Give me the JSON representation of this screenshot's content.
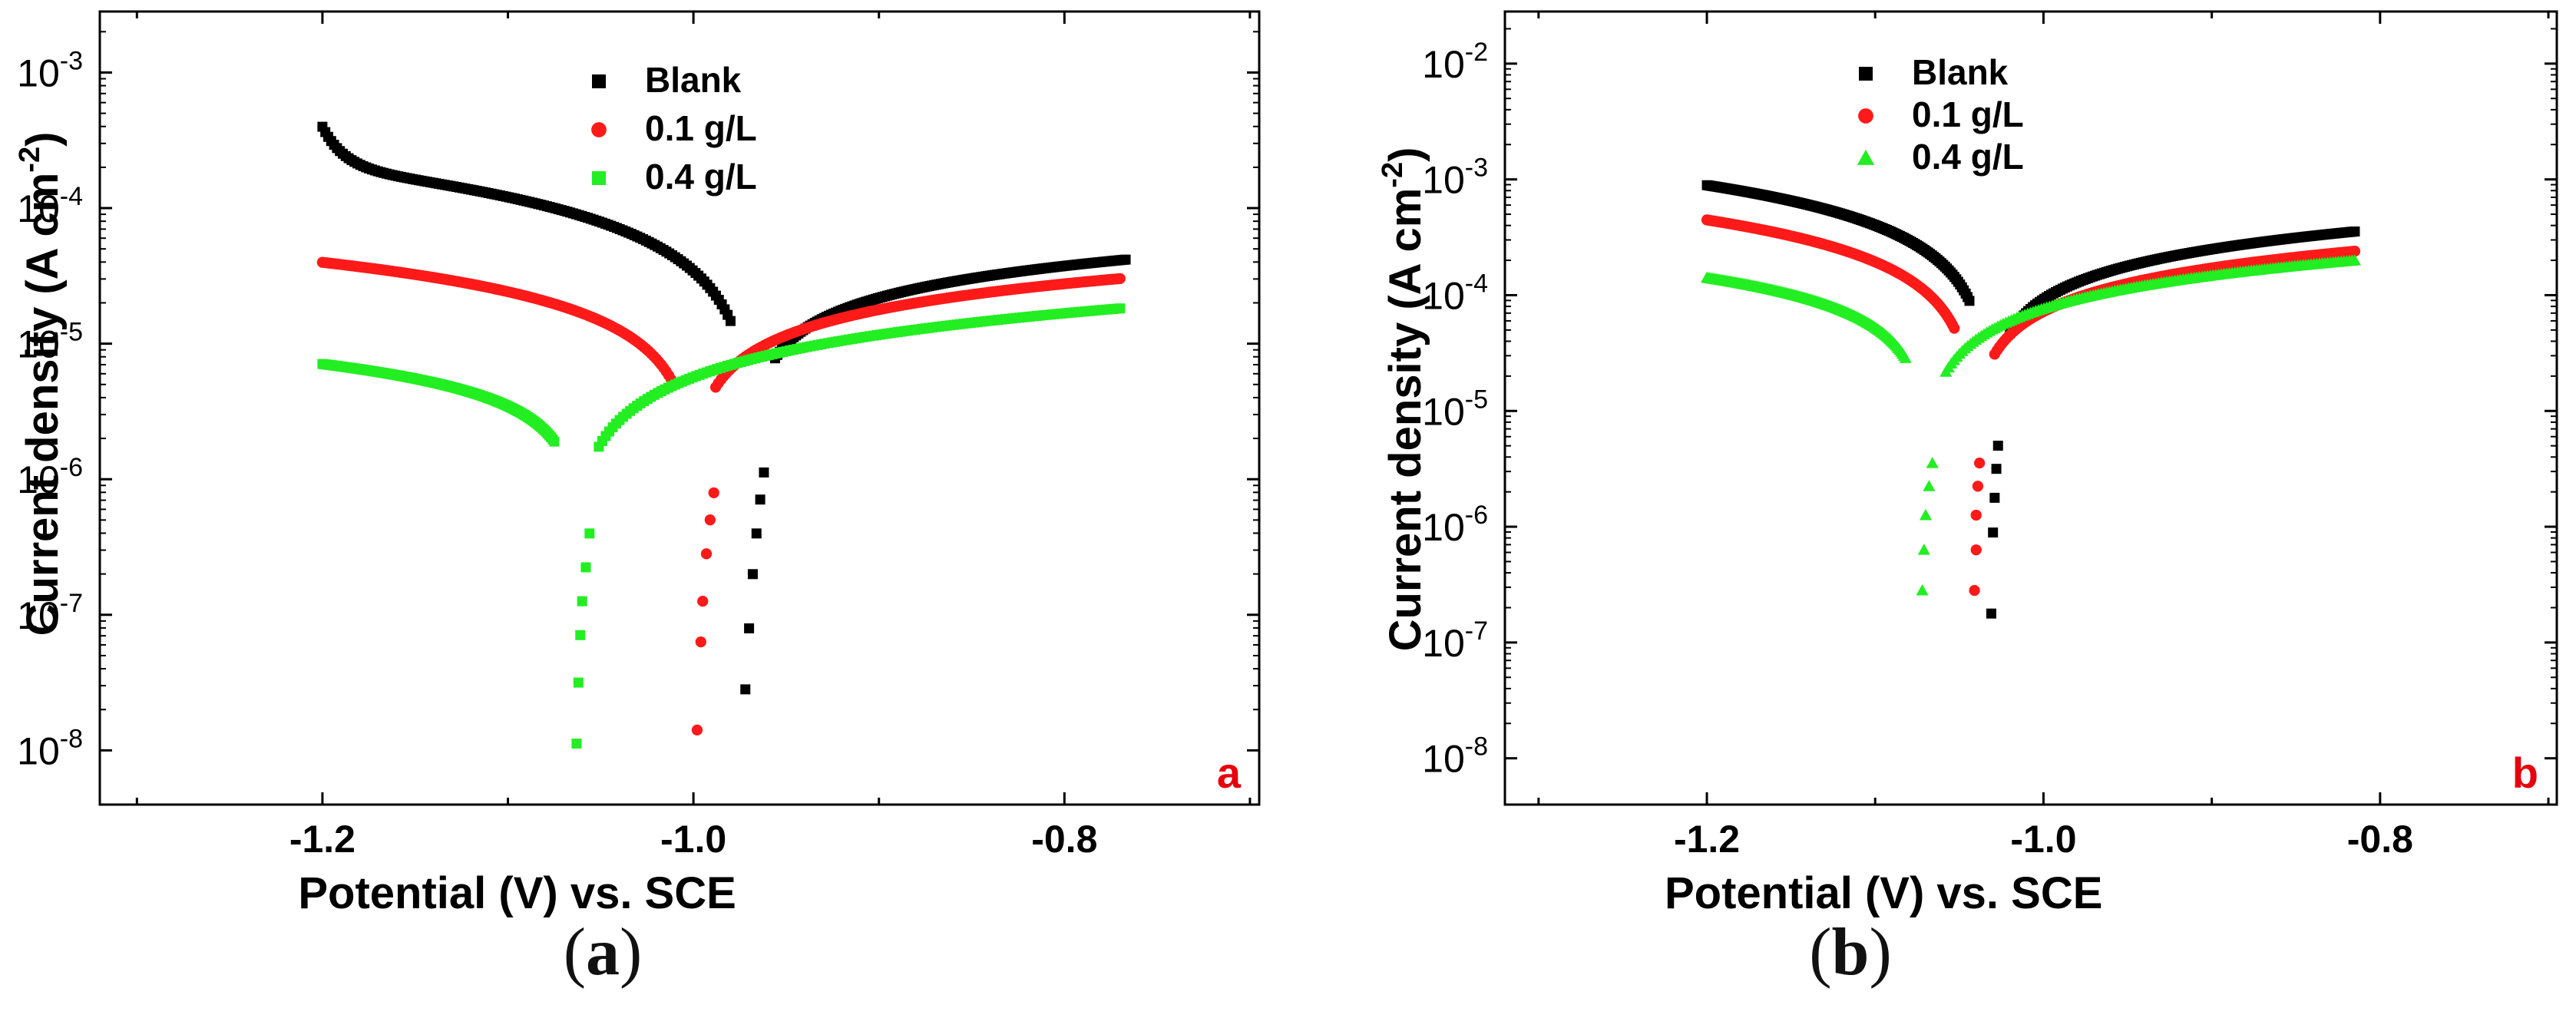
{
  "chart_data": [
    {
      "id": "a",
      "type": "scatter",
      "yscale": "log",
      "xlabel": "Potential (V) vs. SCE",
      "ylabel_main": "Current density (A cm",
      "ylabel_sup": "-2",
      "ylabel_close": ")",
      "xlim": [
        -1.32,
        -0.695
      ],
      "ylim_exp": [
        -8.4,
        -2.55
      ],
      "xticks": [
        -1.2,
        -1.0,
        -0.8
      ],
      "xtick_labels": [
        "-1.2",
        "-1.0",
        "-0.8"
      ],
      "yticks_exp": [
        -8,
        -7,
        -6,
        -5,
        -4,
        -3
      ],
      "ytick_sup": [
        "-8",
        "-7",
        "-6",
        "-5",
        "-4",
        "-3"
      ],
      "ytick_base": "10",
      "panel_label": "a",
      "panel_label_color": "#e8000b",
      "legend": [
        {
          "name": "Blank",
          "color": "#000000",
          "marker": "square"
        },
        {
          "name": "0.1 g/L",
          "color": "#ff1a1a",
          "marker": "circle"
        },
        {
          "name": "0.4 g/L",
          "color": "#22ee22",
          "marker": "square"
        }
      ],
      "series": [
        {
          "name": "Blank",
          "color": "#000000",
          "marker": "square",
          "Ecorr": -0.968,
          "y_start": -3.7,
          "cat_a": 0.6,
          "cat_b": 0.3,
          "cat_k": 32,
          "an_end": -0.767,
          "y_end": -4.38,
          "an_a": 0.75,
          "an_b": 0.24,
          "an_k": 40,
          "spike": [
            [
              -0.972,
              -7.55
            ],
            [
              -0.97,
              -7.1
            ],
            [
              -0.968,
              -6.7
            ],
            [
              -0.966,
              -6.4
            ],
            [
              -0.964,
              -6.15
            ],
            [
              -0.962,
              -5.95
            ]
          ]
        },
        {
          "name": "0.1 g/L",
          "color": "#ff1a1a",
          "marker": "circle",
          "Ecorr": -1.0,
          "y_start": -4.4,
          "cat_a": 1.15,
          "cat_b": 0.0,
          "cat_k": 22,
          "an_end": -0.77,
          "y_end": -4.52,
          "an_a": 1.0,
          "an_b": 0.0,
          "an_k": 30,
          "spike": [
            [
              -0.998,
              -7.85
            ],
            [
              -0.996,
              -7.2
            ],
            [
              -0.995,
              -6.9
            ],
            [
              -0.993,
              -6.55
            ],
            [
              -0.991,
              -6.3
            ],
            [
              -0.989,
              -6.1
            ]
          ]
        },
        {
          "name": "0.4 g/L",
          "color": "#22ee22",
          "marker": "square",
          "Ecorr": -1.063,
          "y_start": -5.15,
          "cat_a": 0.9,
          "cat_b": 0.0,
          "cat_k": 18,
          "an_end": -0.77,
          "y_end": -4.74,
          "an_a": 1.55,
          "an_b": 0.0,
          "an_k": 14,
          "spike": [
            [
              -1.063,
              -7.95
            ],
            [
              -1.062,
              -7.5
            ],
            [
              -1.061,
              -7.15
            ],
            [
              -1.06,
              -6.9
            ],
            [
              -1.058,
              -6.65
            ],
            [
              -1.056,
              -6.4
            ]
          ]
        }
      ]
    },
    {
      "id": "b",
      "type": "scatter",
      "yscale": "log",
      "xlabel": "Potential (V) vs. SCE",
      "ylabel_main": "Current density (A cm",
      "ylabel_sup": "-2",
      "ylabel_close": ")",
      "xlim": [
        -1.32,
        -0.695
      ],
      "ylim_exp": [
        -8.4,
        -1.55
      ],
      "xticks": [
        -1.2,
        -1.0,
        -0.8
      ],
      "xtick_labels": [
        "-1.2",
        "-1.0",
        "-0.8"
      ],
      "yticks_exp": [
        -8,
        -7,
        -6,
        -5,
        -4,
        -3,
        -2
      ],
      "ytick_sup": [
        "-8",
        "-7",
        "-6",
        "-5",
        "-4",
        "-3",
        "-2"
      ],
      "ytick_base": "10",
      "panel_label": "b",
      "panel_label_color": "#e8000b",
      "legend": [
        {
          "name": "Blank",
          "color": "#000000",
          "marker": "square"
        },
        {
          "name": "0.1 g/L",
          "color": "#ff1a1a",
          "marker": "circle"
        },
        {
          "name": "0.4 g/L",
          "color": "#22ee22",
          "marker": "triangle"
        }
      ],
      "series": [
        {
          "name": "Blank",
          "color": "#000000",
          "marker": "square",
          "Ecorr": -1.032,
          "y_start": -3.05,
          "cat_a": 0.75,
          "cat_b": 0.0,
          "cat_k": 35,
          "an_end": -0.815,
          "y_end": -3.45,
          "an_a": 0.95,
          "an_b": 0.0,
          "an_k": 40,
          "spike": [
            [
              -1.031,
              -6.75
            ],
            [
              -1.03,
              -6.05
            ],
            [
              -1.029,
              -5.75
            ],
            [
              -1.028,
              -5.5
            ],
            [
              -1.027,
              -5.3
            ]
          ]
        },
        {
          "name": "0.1 g/L",
          "color": "#ff1a1a",
          "marker": "circle",
          "Ecorr": -1.041,
          "y_start": -3.35,
          "cat_a": 0.9,
          "cat_b": 0.0,
          "cat_k": 30,
          "an_end": -0.815,
          "y_end": -3.62,
          "an_a": 1.0,
          "an_b": 0.0,
          "an_k": 38,
          "spike": [
            [
              -1.041,
              -6.55
            ],
            [
              -1.04,
              -6.2
            ],
            [
              -1.04,
              -5.9
            ],
            [
              -1.039,
              -5.65
            ],
            [
              -1.038,
              -5.45
            ]
          ]
        },
        {
          "name": "0.4 g/L",
          "color": "#22ee22",
          "marker": "triangle",
          "Ecorr": -1.07,
          "y_start": -3.85,
          "cat_a": 1.05,
          "cat_b": 0.0,
          "cat_k": 22,
          "an_end": -0.815,
          "y_end": -3.7,
          "an_a": 1.35,
          "an_b": 0.0,
          "an_k": 22,
          "spike": [
            [
              -1.072,
              -6.55
            ],
            [
              -1.071,
              -6.2
            ],
            [
              -1.07,
              -5.9
            ],
            [
              -1.068,
              -5.65
            ],
            [
              -1.066,
              -5.45
            ]
          ]
        }
      ]
    }
  ],
  "captions": [
    {
      "open": "(",
      "letter": "a",
      "close": ")"
    },
    {
      "open": "(",
      "letter": "b",
      "close": ")"
    }
  ]
}
